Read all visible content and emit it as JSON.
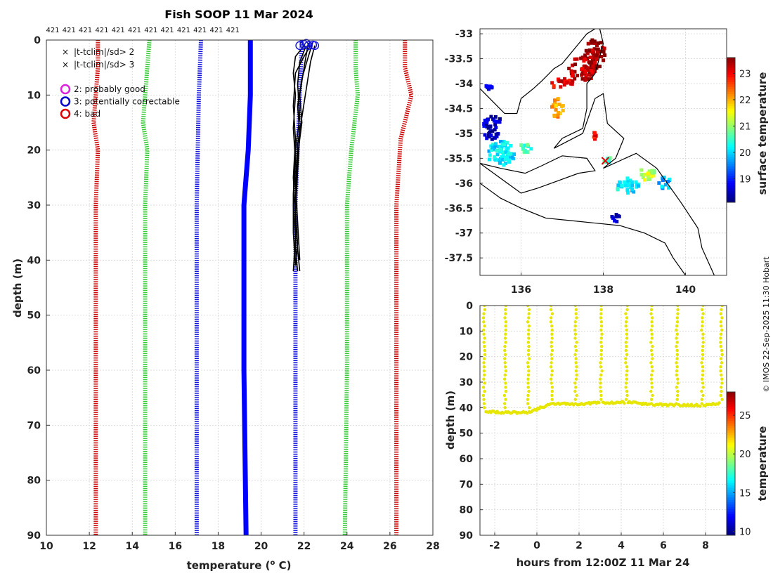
{
  "chart_data": [
    {
      "type": "line",
      "name": "profile",
      "title": "Fish SOOP 11 Mar 2024",
      "xlabel": "temperature (",
      "xlabel_sup": "o",
      "xlabel_end": " C)",
      "ylabel": "depth (m)",
      "xlim": [
        10,
        28
      ],
      "ylim": [
        0,
        90
      ],
      "xticks": [
        10,
        12,
        14,
        16,
        18,
        20,
        22,
        24,
        26,
        28
      ],
      "yticks": [
        0,
        10,
        20,
        30,
        40,
        50,
        60,
        70,
        80,
        90
      ],
      "top_labels": [
        "421",
        "421",
        "421",
        "421",
        "421",
        "421",
        "421",
        "421",
        "421",
        "421",
        "421",
        "421"
      ],
      "legend": [
        {
          "marker": "x",
          "color": "#22cc22",
          "label": "|t-tclim|/sd> 2"
        },
        {
          "marker": "x",
          "color": "#dd0000",
          "label": "|t-tclim|/sd> 3"
        },
        {
          "marker": "o",
          "color": "#dd22dd",
          "label": "2: probably good"
        },
        {
          "marker": "o",
          "color": "#0000cc",
          "label": "3: potentially correctable"
        },
        {
          "marker": "o",
          "color": "#dd0000",
          "label": "4: bad"
        }
      ],
      "series": [
        {
          "name": "clim -3sd",
          "color": "#cc0000",
          "style": "dotted",
          "points": [
            [
              12.4,
              0
            ],
            [
              12.4,
              5
            ],
            [
              12.2,
              15
            ],
            [
              12.4,
              20
            ],
            [
              12.3,
              30
            ],
            [
              12.3,
              60
            ],
            [
              12.3,
              90
            ]
          ]
        },
        {
          "name": "clim -2sd",
          "color": "#33cc33",
          "style": "dotted",
          "points": [
            [
              14.8,
              0
            ],
            [
              14.7,
              5
            ],
            [
              14.5,
              15
            ],
            [
              14.7,
              20
            ],
            [
              14.6,
              30
            ],
            [
              14.6,
              60
            ],
            [
              14.6,
              90
            ]
          ]
        },
        {
          "name": "clim -1sd",
          "color": "#1111dd",
          "style": "dotted",
          "points": [
            [
              17.2,
              0
            ],
            [
              17.1,
              10
            ],
            [
              17.0,
              30
            ],
            [
              17.0,
              60
            ],
            [
              17.0,
              90
            ]
          ]
        },
        {
          "name": "clim mean",
          "color": "#0000ff",
          "style": "solid",
          "points": [
            [
              19.5,
              0
            ],
            [
              19.5,
              10
            ],
            [
              19.4,
              20
            ],
            [
              19.3,
              25
            ],
            [
              19.2,
              30
            ],
            [
              19.2,
              60
            ],
            [
              19.3,
              90
            ]
          ]
        },
        {
          "name": "clim +1sd",
          "color": "#1111dd",
          "style": "dotted",
          "points": [
            [
              21.9,
              0
            ],
            [
              21.8,
              10
            ],
            [
              21.7,
              20
            ],
            [
              21.6,
              30
            ],
            [
              21.6,
              60
            ],
            [
              21.6,
              90
            ]
          ]
        },
        {
          "name": "clim +2sd",
          "color": "#33cc33",
          "style": "dotted",
          "points": [
            [
              24.4,
              0
            ],
            [
              24.4,
              5
            ],
            [
              24.5,
              10
            ],
            [
              24.2,
              20
            ],
            [
              24.0,
              30
            ],
            [
              24.0,
              60
            ],
            [
              23.9,
              90
            ]
          ]
        },
        {
          "name": "clim +3sd",
          "color": "#cc0000",
          "style": "dotted",
          "points": [
            [
              26.7,
              0
            ],
            [
              26.7,
              5
            ],
            [
              27.0,
              10
            ],
            [
              26.5,
              18
            ],
            [
              26.3,
              30
            ],
            [
              26.3,
              60
            ],
            [
              26.3,
              90
            ]
          ]
        }
      ],
      "profiles": [
        [
          [
            22.3,
            1
          ],
          [
            22.0,
            3
          ],
          [
            21.6,
            6
          ],
          [
            21.5,
            12
          ],
          [
            21.6,
            18
          ],
          [
            21.5,
            25
          ],
          [
            21.6,
            32
          ],
          [
            21.7,
            38
          ],
          [
            21.8,
            42
          ]
        ],
        [
          [
            22.1,
            1
          ],
          [
            21.8,
            4
          ],
          [
            21.7,
            8
          ],
          [
            21.8,
            14
          ],
          [
            21.6,
            20
          ],
          [
            21.5,
            28
          ],
          [
            21.5,
            35
          ],
          [
            21.6,
            41
          ]
        ],
        [
          [
            22.4,
            0.5
          ],
          [
            22.2,
            3
          ],
          [
            21.9,
            7
          ],
          [
            21.7,
            12
          ],
          [
            21.8,
            17
          ],
          [
            21.7,
            24
          ],
          [
            21.6,
            31
          ],
          [
            21.7,
            37
          ],
          [
            21.6,
            41
          ]
        ],
        [
          [
            22.0,
            1
          ],
          [
            21.6,
            3
          ],
          [
            21.5,
            6
          ],
          [
            21.6,
            10
          ],
          [
            21.5,
            16
          ],
          [
            21.6,
            22
          ],
          [
            21.5,
            30
          ],
          [
            21.6,
            36
          ],
          [
            21.5,
            42
          ]
        ],
        [
          [
            22.5,
            1
          ],
          [
            22.3,
            4
          ],
          [
            22.1,
            9
          ],
          [
            21.9,
            14
          ],
          [
            21.7,
            19
          ],
          [
            21.6,
            26
          ],
          [
            21.7,
            33
          ],
          [
            21.8,
            40
          ]
        ],
        [
          [
            22.2,
            0.5
          ],
          [
            22.0,
            5
          ],
          [
            21.8,
            10
          ],
          [
            21.9,
            15
          ],
          [
            21.7,
            21
          ],
          [
            21.6,
            29
          ],
          [
            21.6,
            38
          ],
          [
            21.7,
            42
          ]
        ]
      ],
      "qc_circles": [
        [
          21.8,
          1
        ],
        [
          22.0,
          0.8
        ],
        [
          22.2,
          1
        ],
        [
          22.4,
          0.9
        ],
        [
          22.5,
          1
        ],
        [
          22.1,
          0.6
        ]
      ]
    },
    {
      "type": "heatmap",
      "name": "sst_map",
      "colorbar_label": "surface temperature",
      "colorbar_ticks": [
        19,
        20,
        21,
        22,
        23
      ],
      "colorbar_range": [
        18.1,
        23.6
      ],
      "xlim": [
        135,
        141
      ],
      "ylim": [
        -37.85,
        -32.9
      ],
      "xticks": [
        136,
        138,
        140
      ],
      "yticks": [
        -33,
        -33.5,
        -34,
        -34.5,
        -35,
        -35.5,
        -36,
        -36.5,
        -37,
        -37.5
      ],
      "ytick_labels": [
        "-33",
        "-33.5",
        "-34",
        "-34.5",
        "-35",
        "-35.5",
        "-36",
        "-36.5",
        "-37",
        "-37.5"
      ],
      "blobs": [
        {
          "lon": 137.8,
          "lat": -33.4,
          "rlon": 0.25,
          "rlat": 0.3,
          "temp": 23.5
        },
        {
          "lon": 137.5,
          "lat": -33.7,
          "rlon": 0.35,
          "rlat": 0.25,
          "temp": 23.3
        },
        {
          "lon": 137.0,
          "lat": -34.0,
          "rlon": 0.3,
          "rlat": 0.1,
          "temp": 23.0
        },
        {
          "lon": 136.9,
          "lat": -34.5,
          "rlon": 0.15,
          "rlat": 0.2,
          "temp": 22.0
        },
        {
          "lon": 137.8,
          "lat": -35.05,
          "rlon": 0.1,
          "rlat": 0.08,
          "temp": 22.8
        },
        {
          "lon": 135.2,
          "lat": -34.1,
          "rlon": 0.12,
          "rlat": 0.08,
          "temp": 18.8
        },
        {
          "lon": 135.3,
          "lat": -34.8,
          "rlon": 0.25,
          "rlat": 0.15,
          "temp": 18.5
        },
        {
          "lon": 135.5,
          "lat": -35.4,
          "rlon": 0.35,
          "rlat": 0.25,
          "temp": 20.0
        },
        {
          "lon": 135.3,
          "lat": -35.05,
          "rlon": 0.2,
          "rlat": 0.1,
          "temp": 18.4
        },
        {
          "lon": 136.1,
          "lat": -35.3,
          "rlon": 0.15,
          "rlat": 0.12,
          "temp": 20.5
        },
        {
          "lon": 138.1,
          "lat": -35.55,
          "rlon": 0.08,
          "rlat": 0.1,
          "temp": 20.5
        },
        {
          "lon": 138.6,
          "lat": -36.05,
          "rlon": 0.3,
          "rlat": 0.15,
          "temp": 20.1
        },
        {
          "lon": 139.1,
          "lat": -35.8,
          "rlon": 0.2,
          "rlat": 0.15,
          "temp": 21.2
        },
        {
          "lon": 139.5,
          "lat": -36.0,
          "rlon": 0.15,
          "rlat": 0.12,
          "temp": 19.8
        },
        {
          "lon": 138.3,
          "lat": -36.7,
          "rlon": 0.1,
          "rlat": 0.08,
          "temp": 18.5
        }
      ],
      "coast": [
        [
          [
            135.0,
            -34.1
          ],
          [
            135.3,
            -34.35
          ],
          [
            135.6,
            -34.6
          ],
          [
            135.9,
            -34.6
          ],
          [
            136.0,
            -34.3
          ],
          [
            136.3,
            -34.1
          ],
          [
            136.5,
            -33.95
          ],
          [
            136.8,
            -33.7
          ],
          [
            137.0,
            -33.6
          ],
          [
            137.3,
            -33.3
          ],
          [
            137.6,
            -33.0
          ],
          [
            137.9,
            -32.85
          ],
          [
            138.0,
            -33.2
          ],
          [
            137.8,
            -33.8
          ],
          [
            137.6,
            -34.0
          ],
          [
            137.6,
            -34.5
          ],
          [
            137.5,
            -34.9
          ],
          [
            137.0,
            -35.1
          ],
          [
            136.8,
            -35.3
          ],
          [
            137.5,
            -35.0
          ],
          [
            137.8,
            -34.3
          ],
          [
            138.0,
            -34.2
          ],
          [
            138.1,
            -34.8
          ],
          [
            138.5,
            -35.1
          ],
          [
            138.3,
            -35.5
          ],
          [
            138.0,
            -35.7
          ],
          [
            138.8,
            -35.4
          ],
          [
            139.3,
            -35.7
          ],
          [
            139.9,
            -36.4
          ],
          [
            140.3,
            -36.9
          ],
          [
            140.4,
            -37.3
          ],
          [
            140.7,
            -37.85
          ]
        ],
        [
          [
            135.0,
            -35.6
          ],
          [
            135.5,
            -35.9
          ],
          [
            136.0,
            -36.2
          ],
          [
            136.4,
            -36.1
          ],
          [
            136.9,
            -35.95
          ],
          [
            137.4,
            -35.8
          ],
          [
            137.8,
            -35.75
          ],
          [
            137.6,
            -35.5
          ],
          [
            137.0,
            -35.45
          ],
          [
            136.5,
            -35.65
          ],
          [
            136.1,
            -35.8
          ],
          [
            135.5,
            -35.7
          ],
          [
            135.0,
            -35.6
          ]
        ],
        [
          [
            135.0,
            -36.0
          ],
          [
            135.5,
            -36.3
          ],
          [
            136.0,
            -36.5
          ],
          [
            136.6,
            -36.7
          ],
          [
            137.2,
            -36.75
          ],
          [
            137.8,
            -36.8
          ],
          [
            138.4,
            -36.85
          ],
          [
            139.0,
            -37.0
          ],
          [
            139.5,
            -37.2
          ],
          [
            139.7,
            -37.5
          ],
          [
            140.0,
            -37.85
          ]
        ]
      ],
      "marker": {
        "lon": 138.05,
        "lat": -35.55
      }
    },
    {
      "type": "scatter",
      "name": "depth_time",
      "xlabel": "hours from 12:00Z 11 Mar 24",
      "ylabel": "depth (m)",
      "colorbar_label": "temperature",
      "colorbar_ticks": [
        10,
        15,
        20,
        25
      ],
      "colorbar_range": [
        9.5,
        28
      ],
      "xlim": [
        -2.7,
        9.0
      ],
      "ylim": [
        0,
        90
      ],
      "xticks": [
        -2,
        0,
        2,
        4,
        6,
        8
      ],
      "yticks": [
        0,
        10,
        20,
        30,
        40,
        50,
        60,
        70,
        80,
        90
      ],
      "cast_hours": [
        -2.5,
        -1.5,
        -0.4,
        0.7,
        1.85,
        3.05,
        4.25,
        5.45,
        6.65,
        7.85,
        8.75
      ],
      "bottom_depths": [
        41.5,
        42.0,
        41.8,
        38.5,
        38.6,
        38.1,
        37.9,
        38.8,
        39.0,
        39.1,
        38.3
      ],
      "point_color": "#e6e600"
    }
  ],
  "credit": "© IMOS 22-Sep-2025 11:30 Hobart"
}
